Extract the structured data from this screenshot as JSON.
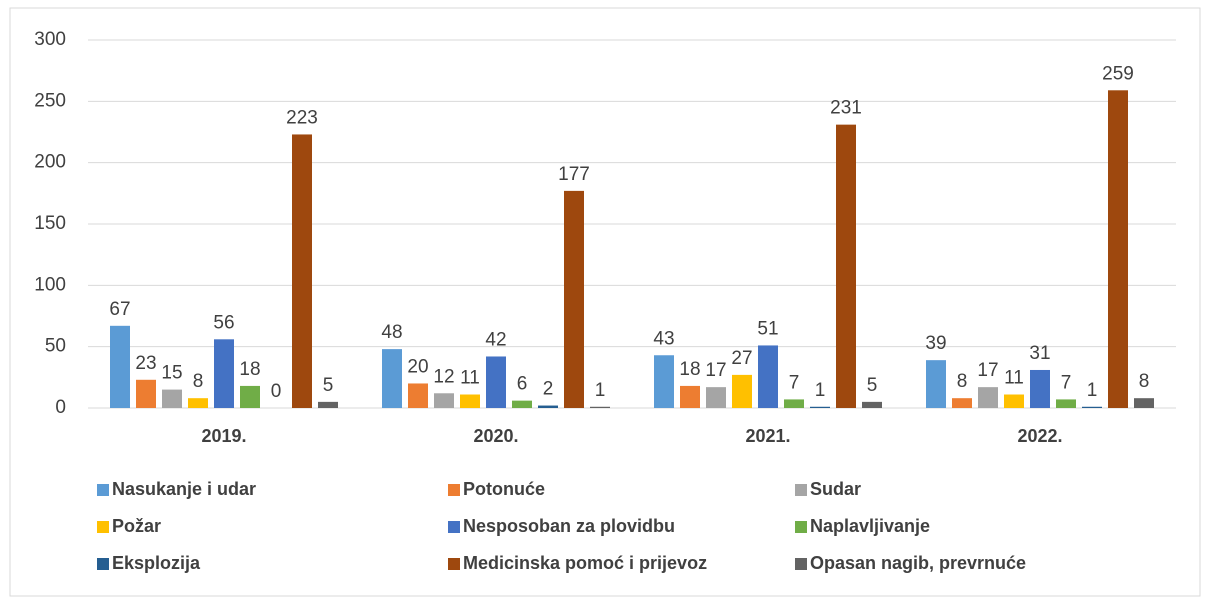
{
  "chart_data": {
    "type": "bar",
    "categories": [
      "2019.",
      "2020.",
      "2021.",
      "2022."
    ],
    "series": [
      {
        "name": "Nasukanje i udar",
        "color": "#5b9bd5",
        "values": [
          67,
          48,
          43,
          39
        ]
      },
      {
        "name": "Potonuće",
        "color": "#ed7d31",
        "values": [
          23,
          20,
          18,
          8
        ]
      },
      {
        "name": "Sudar",
        "color": "#a5a5a5",
        "values": [
          15,
          12,
          17,
          17
        ]
      },
      {
        "name": "Požar",
        "color": "#ffc000",
        "values": [
          8,
          11,
          27,
          11
        ]
      },
      {
        "name": "Nesposoban za plovidbu",
        "color": "#4472c4",
        "values": [
          56,
          42,
          51,
          31
        ]
      },
      {
        "name": "Naplavljivanje",
        "color": "#70ad47",
        "values": [
          18,
          6,
          7,
          7
        ]
      },
      {
        "name": "Eksplozija",
        "color": "#255e91",
        "values": [
          0,
          2,
          1,
          1
        ]
      },
      {
        "name": "Medicinska pomoć i prijevoz",
        "color": "#9e480e",
        "values": [
          223,
          177,
          231,
          259
        ]
      },
      {
        "name": "Opasan nagib, prevrnuće",
        "color": "#636363",
        "values": [
          5,
          1,
          5,
          8
        ]
      }
    ],
    "ylim": [
      0,
      300
    ],
    "yticks": [
      0,
      50,
      100,
      150,
      200,
      250,
      300
    ],
    "grid": true,
    "legend": "bottom"
  }
}
